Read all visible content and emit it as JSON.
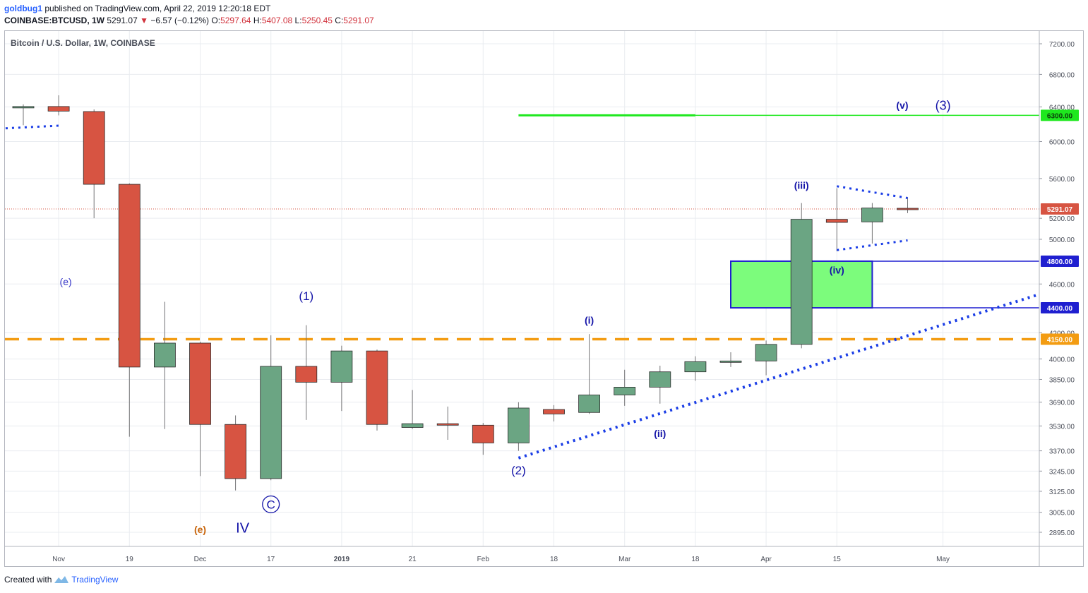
{
  "header": {
    "user": "goldbug1",
    "published": "published on TradingView.com, April 22, 2019 12:20:18 EDT",
    "symbol": "COINBASE:BTCUSD, 1W",
    "last": "5291.07",
    "change_arrow": "▼",
    "change": "−6.57 (−0.12%)",
    "ohlc_prefix": "O:",
    "o": "5297.64",
    "h_prefix": "H:",
    "h": "5407.08",
    "l_prefix": "L:",
    "l": "5250.45",
    "c_prefix": "C:",
    "c": "5291.07"
  },
  "footer": {
    "created_with": "Created with",
    "brand": "TradingView"
  },
  "colors": {
    "up": "#6ba583",
    "down": "#d75442",
    "wick": "#737375",
    "grid": "#e9ecf0",
    "axis_text": "#4a4e59",
    "wave_blue": "#1414a8",
    "trend_blue": "#1a3de6",
    "orange": "#f39c12",
    "green_line": "#1ee81e",
    "zone_fill": "#7cfc7c",
    "zone_border": "#1f1fd0",
    "price_label": "#d75442",
    "label_blue": "#1313c8"
  },
  "chart_data": {
    "type": "candlestick",
    "title": "Bitcoin / U.S. Dollar, 1W, COINBASE",
    "yscale": "log",
    "ylim": [
      2800,
      7400
    ],
    "y_ticks": [
      "2895.00",
      "3005.00",
      "3125.00",
      "3245.00",
      "3370.00",
      "3530.00",
      "3690.00",
      "3850.00",
      "4000.00",
      "4200.00",
      "4600.00",
      "5000.00",
      "5200.00",
      "5600.00",
      "6000.00",
      "6400.00",
      "6800.00",
      "7200.00"
    ],
    "x_ticks": [
      "Nov",
      "19",
      "Dec",
      "17",
      "2019",
      "21",
      "Feb",
      "18",
      "Mar",
      "18",
      "Apr",
      "15",
      "May"
    ],
    "x_tick_index": [
      1.0,
      3.0,
      5.0,
      7.0,
      9.0,
      11.0,
      13.0,
      15.0,
      17.0,
      19.0,
      21.0,
      23.0,
      26.0
    ],
    "candles": [
      {
        "i": -0.0,
        "o": 6395,
        "h": 6430,
        "l": 6185,
        "c": 6405
      },
      {
        "i": 1.0,
        "o": 6405,
        "h": 6540,
        "l": 6300,
        "c": 6350
      },
      {
        "i": 2.0,
        "o": 6345,
        "h": 6370,
        "l": 5200,
        "c": 5540
      },
      {
        "i": 3.0,
        "o": 5540,
        "h": 5550,
        "l": 3460,
        "c": 3940
      },
      {
        "i": 4.0,
        "o": 3940,
        "h": 4450,
        "l": 3510,
        "c": 4120
      },
      {
        "i": 5.0,
        "o": 4120,
        "h": 4130,
        "l": 3215,
        "c": 3540
      },
      {
        "i": 6.0,
        "o": 3540,
        "h": 3600,
        "l": 3130,
        "c": 3200
      },
      {
        "i": 7.0,
        "o": 3200,
        "h": 4180,
        "l": 3190,
        "c": 3945
      },
      {
        "i": 8.0,
        "o": 3945,
        "h": 4260,
        "l": 3570,
        "c": 3830
      },
      {
        "i": 9.0,
        "o": 3830,
        "h": 4100,
        "l": 3630,
        "c": 4060
      },
      {
        "i": 10.0,
        "o": 4060,
        "h": 4070,
        "l": 3500,
        "c": 3540
      },
      {
        "i": 11.0,
        "o": 3520,
        "h": 3775,
        "l": 3510,
        "c": 3545
      },
      {
        "i": 12.0,
        "o": 3545,
        "h": 3660,
        "l": 3440,
        "c": 3535
      },
      {
        "i": 13.0,
        "o": 3535,
        "h": 3550,
        "l": 3345,
        "c": 3420
      },
      {
        "i": 14.0,
        "o": 3420,
        "h": 3690,
        "l": 3370,
        "c": 3650
      },
      {
        "i": 15.0,
        "o": 3640,
        "h": 3670,
        "l": 3560,
        "c": 3610
      },
      {
        "i": 16.0,
        "o": 3620,
        "h": 4190,
        "l": 3610,
        "c": 3740
      },
      {
        "i": 17.0,
        "o": 3740,
        "h": 3920,
        "l": 3665,
        "c": 3795
      },
      {
        "i": 18.0,
        "o": 3795,
        "h": 3950,
        "l": 3680,
        "c": 3905
      },
      {
        "i": 19.0,
        "o": 3905,
        "h": 4020,
        "l": 3840,
        "c": 3980
      },
      {
        "i": 20.0,
        "o": 3975,
        "h": 4050,
        "l": 3940,
        "c": 3985
      },
      {
        "i": 21.0,
        "o": 3985,
        "h": 4140,
        "l": 3880,
        "c": 4110
      },
      {
        "i": 22.0,
        "o": 4110,
        "h": 5350,
        "l": 4080,
        "c": 5190
      },
      {
        "i": 23.0,
        "o": 5190,
        "h": 5500,
        "l": 4890,
        "c": 5160
      },
      {
        "i": 24.0,
        "o": 5165,
        "h": 5350,
        "l": 4960,
        "c": 5300
      },
      {
        "i": 25.0,
        "o": 5297.64,
        "h": 5407.08,
        "l": 5250.45,
        "c": 5291.07
      }
    ],
    "current_price": "5291.07",
    "levels": [
      {
        "value": "6300.00",
        "color": "#1ee81e",
        "style": "solid"
      },
      {
        "value": "4800.00",
        "color": "#1f1fd0",
        "style": "solid"
      },
      {
        "value": "4400.00",
        "color": "#1f1fd0",
        "style": "solid"
      },
      {
        "value": "4150.00",
        "color": "#f39c12",
        "style": "dashed"
      }
    ],
    "annotations": [
      {
        "text": "(e)",
        "i": 1.2,
        "v": 4620,
        "color": "#3535c8",
        "size": 14
      },
      {
        "text": "(1)",
        "i": 8.0,
        "v": 4500,
        "color": "#1414a8",
        "size": 17
      },
      {
        "text": "(e)",
        "i": 5.0,
        "v": 2910,
        "color": "#c8640a",
        "size": 14,
        "bold": true
      },
      {
        "text": "IV",
        "i": 6.2,
        "v": 2920,
        "color": "#1414a8",
        "size": 20
      },
      {
        "text": "C",
        "i": 7.0,
        "v": 3050,
        "color": "#1414a8",
        "size": 17,
        "circled": true
      },
      {
        "text": "(i)",
        "i": 16.0,
        "v": 4300,
        "color": "#1414a8",
        "size": 14,
        "bold": true
      },
      {
        "text": "(2)",
        "i": 14.0,
        "v": 3250,
        "color": "#1414a8",
        "size": 17
      },
      {
        "text": "(ii)",
        "i": 18.0,
        "v": 3480,
        "color": "#1414a8",
        "size": 14,
        "bold": true
      },
      {
        "text": "(iii)",
        "i": 22.0,
        "v": 5530,
        "color": "#1414a8",
        "size": 14,
        "bold": true
      },
      {
        "text": "(iv)",
        "i": 23.0,
        "v": 4720,
        "color": "#1414a8",
        "size": 14,
        "bold": true
      },
      {
        "text": "(v)",
        "i": 24.85,
        "v": 6420,
        "color": "#1414a8",
        "size": 14,
        "bold": true
      },
      {
        "text": "(3)",
        "i": 26.0,
        "v": 6420,
        "color": "#1414a8",
        "size": 18
      }
    ]
  }
}
